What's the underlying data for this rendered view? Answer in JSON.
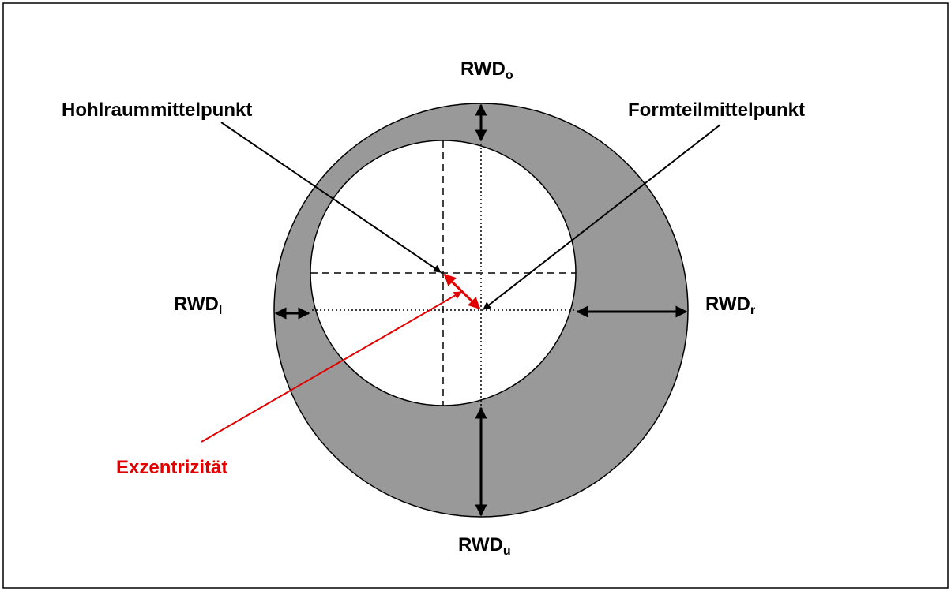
{
  "labels": {
    "top": {
      "main": "RWD",
      "sub": "o"
    },
    "left": {
      "main": "RWD",
      "sub": "l"
    },
    "right": {
      "main": "RWD",
      "sub": "r"
    },
    "bottom": {
      "main": "RWD",
      "sub": "u"
    },
    "cavity_center": "Hohlraummittelpunkt",
    "part_center": "Formteilmittelpunkt",
    "eccentricity": "Exzentrizität"
  }
}
